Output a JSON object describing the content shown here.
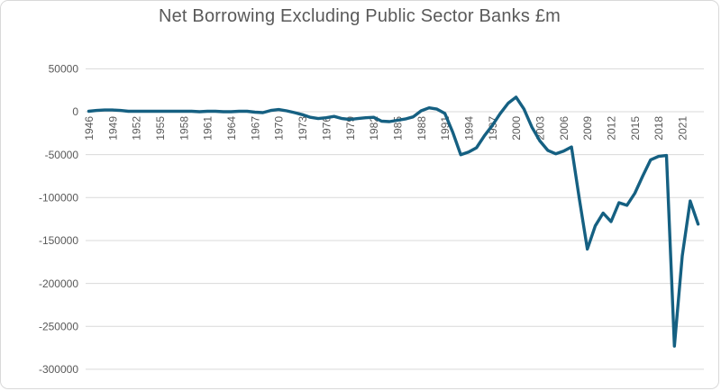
{
  "chart": {
    "title": "Net Borrowing Excluding Public Sector Banks £m"
  },
  "chart_data": {
    "type": "line",
    "title": "Net Borrowing Excluding Public Sector Banks £m",
    "xlabel": "",
    "ylabel": "",
    "x_range": [
      1946,
      2023
    ],
    "x_step": 1,
    "ylim": [
      -300000,
      50000
    ],
    "y_ticks": [
      50000,
      0,
      -50000,
      -100000,
      -150000,
      -200000,
      -250000,
      -300000
    ],
    "x_ticks": [
      1946,
      1949,
      1952,
      1955,
      1958,
      1961,
      1964,
      1967,
      1970,
      1973,
      1976,
      1979,
      1982,
      1985,
      1988,
      1991,
      1994,
      1997,
      2000,
      2003,
      2006,
      2009,
      2012,
      2015,
      2018,
      2021
    ],
    "grid": "horizontal",
    "legend": "none",
    "x_tick_rotation_deg": 270,
    "series": [
      {
        "name": "Net Borrowing Excluding Public Sector Banks £m",
        "values": [
          500,
          1500,
          2000,
          2000,
          1500,
          500,
          500,
          500,
          500,
          500,
          500,
          500,
          500,
          500,
          0,
          500,
          500,
          0,
          0,
          500,
          500,
          -500,
          -1000,
          1500,
          2500,
          1000,
          -1000,
          -3500,
          -6500,
          -8000,
          -7000,
          -5500,
          -8000,
          -9000,
          -8000,
          -7000,
          -6500,
          -11000,
          -11500,
          -10000,
          -8500,
          -6000,
          1000,
          4500,
          3000,
          -2000,
          -24000,
          -50000,
          -47000,
          -42000,
          -28000,
          -16000,
          -2000,
          10000,
          17000,
          3000,
          -18000,
          -34000,
          -45000,
          -49000,
          -46000,
          -41000,
          -102000,
          -160000,
          -133000,
          -118000,
          -128000,
          -106000,
          -109000,
          -95000,
          -75000,
          -56000,
          -52000,
          -51000,
          -273000,
          -168000,
          -104000,
          -131000
        ]
      }
    ],
    "colors": {
      "line": "#156082",
      "grid": "#d9d9d9",
      "ticks": "#595959",
      "title": "#595959",
      "background": "#ffffff"
    }
  }
}
